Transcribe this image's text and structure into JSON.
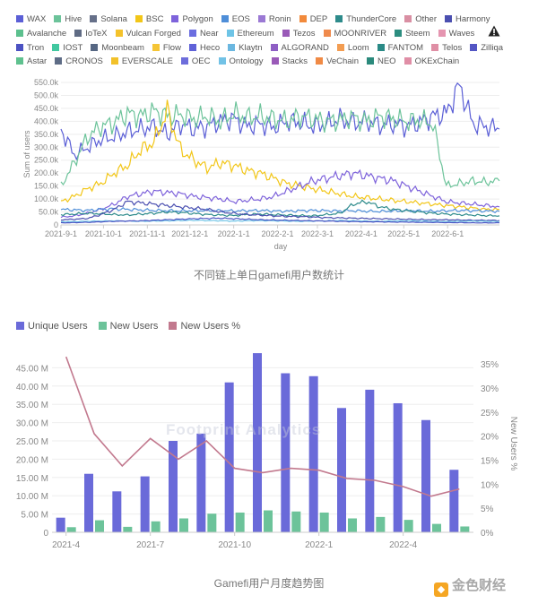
{
  "chart_data": [
    {
      "type": "line",
      "title": "不同链上单日gamefi用户数统计",
      "xlabel": "day",
      "ylabel": "Sum of users",
      "ylim": [
        0,
        550000
      ],
      "y_ticks": [
        "0",
        "50.0k",
        "100.0k",
        "150.0k",
        "200.0k",
        "250.0k",
        "300.0k",
        "350.0k",
        "400.0k",
        "450.0k",
        "500.0k",
        "550.0k"
      ],
      "x_ticks": [
        "2021-9-1",
        "2021-10-1",
        "2021-11-1",
        "2021-12-1",
        "2022-1-1",
        "2022-2-1",
        "2022-3-1",
        "2022-4-1",
        "2022-5-1",
        "2022-6-1"
      ],
      "legend": [
        {
          "name": "WAX",
          "color": "#5b5fd6"
        },
        {
          "name": "Hive",
          "color": "#6cc39a"
        },
        {
          "name": "Solana",
          "color": "#667089"
        },
        {
          "name": "BSC",
          "color": "#f2c618"
        },
        {
          "name": "Polygon",
          "color": "#7e63db"
        },
        {
          "name": "EOS",
          "color": "#4e8ed8"
        },
        {
          "name": "Ronin",
          "color": "#9b79d4"
        },
        {
          "name": "DEP",
          "color": "#f28a3b"
        },
        {
          "name": "ThunderCore",
          "color": "#2e8b8b"
        },
        {
          "name": "Other",
          "color": "#d98fa3"
        },
        {
          "name": "Harmony",
          "color": "#4b4fb0"
        },
        {
          "name": "Avalanche",
          "color": "#5cc08e"
        },
        {
          "name": "IoTeX",
          "color": "#5f6b84"
        },
        {
          "name": "Vulcan Forged",
          "color": "#f4c22b"
        },
        {
          "name": "Near",
          "color": "#6b6ee0"
        },
        {
          "name": "Ethereum",
          "color": "#6ec4e6"
        },
        {
          "name": "Tezos",
          "color": "#9a5ab8"
        },
        {
          "name": "MOONRIVER",
          "color": "#ef8a4c"
        },
        {
          "name": "Steem",
          "color": "#2c8d7f"
        },
        {
          "name": "Waves",
          "color": "#e595b0"
        },
        {
          "name": "Tron",
          "color": "#4c52c2"
        },
        {
          "name": "IOST",
          "color": "#41c8a0"
        },
        {
          "name": "Moonbeam",
          "color": "#566783"
        },
        {
          "name": "Flow",
          "color": "#f5c536"
        },
        {
          "name": "Heco",
          "color": "#5f62d8"
        },
        {
          "name": "Klaytn",
          "color": "#6bb7e0"
        },
        {
          "name": "ALGORAND",
          "color": "#8e5fc4"
        },
        {
          "name": "Loom",
          "color": "#f39d52"
        },
        {
          "name": "FANTOM",
          "color": "#2a8a86"
        },
        {
          "name": "Telos",
          "color": "#df8fa5"
        },
        {
          "name": "Zilliqa",
          "color": "#5356c4"
        },
        {
          "name": "Astar",
          "color": "#5fc18f"
        },
        {
          "name": "CRONOS",
          "color": "#5e6c86"
        },
        {
          "name": "EVERSCALE",
          "color": "#f2c12a"
        },
        {
          "name": "OEC",
          "color": "#6d6ddb"
        },
        {
          "name": "Ontology",
          "color": "#72c2e6"
        },
        {
          "name": "Stacks",
          "color": "#9a5ab8"
        },
        {
          "name": "VeChain",
          "color": "#f08a45"
        },
        {
          "name": "NEO",
          "color": "#2b8a7c"
        },
        {
          "name": "OKExChain",
          "color": "#e08ea6"
        }
      ],
      "series": [
        {
          "name": "WAX",
          "color": "#5b5fd6",
          "values": [
            370000,
            270000,
            300000,
            330000,
            340000,
            360000,
            370000,
            380000,
            350000,
            390000,
            370000,
            380000,
            400000,
            410000,
            380000,
            390000,
            375000,
            400000,
            395000,
            380000,
            390000,
            410000,
            395000,
            400000,
            385000,
            390000,
            380000,
            395000,
            420000,
            430000,
            540000,
            390000,
            380000,
            370000
          ]
        },
        {
          "name": "Hive",
          "color": "#6cc39a",
          "values": [
            150000,
            240000,
            340000,
            380000,
            395000,
            430000,
            420000,
            440000,
            420000,
            425000,
            410000,
            420000,
            400000,
            430000,
            415000,
            420000,
            410000,
            400000,
            420000,
            410000,
            400000,
            405000,
            415000,
            400000,
            420000,
            410000,
            400000,
            405000,
            390000,
            150000,
            160000,
            170000,
            165000,
            170000
          ]
        },
        {
          "name": "BSC",
          "color": "#f2c618",
          "values": [
            90000,
            110000,
            140000,
            160000,
            200000,
            230000,
            290000,
            320000,
            440000,
            290000,
            250000,
            220000,
            240000,
            230000,
            210000,
            200000,
            180000,
            160000,
            150000,
            140000,
            130000,
            120000,
            110000,
            105000,
            100000,
            95000,
            90000,
            85000,
            80000,
            75000,
            70000,
            65000,
            60000,
            60000
          ]
        },
        {
          "name": "Polygon",
          "color": "#7e63db",
          "values": [
            30000,
            35000,
            45000,
            60000,
            80000,
            110000,
            120000,
            130000,
            125000,
            120000,
            110000,
            105000,
            100000,
            90000,
            95000,
            100000,
            110000,
            130000,
            150000,
            170000,
            180000,
            190000,
            200000,
            190000,
            180000,
            170000,
            150000,
            130000,
            110000,
            90000,
            85000,
            80000,
            75000,
            70000
          ]
        },
        {
          "name": "EOS",
          "color": "#4e8ed8",
          "values": [
            60000,
            58000,
            56000,
            60000,
            62000,
            60000,
            58000,
            56000,
            55000,
            54000,
            55000,
            56000,
            55000,
            54000,
            55000,
            56000,
            54000,
            53000,
            55000,
            56000,
            55000,
            54000,
            55000,
            53000,
            52000,
            54000,
            55000,
            54000,
            53000,
            55000,
            56000,
            55000,
            54000,
            53000
          ]
        },
        {
          "name": "ThunderCore",
          "color": "#2e8b8b",
          "values": [
            40000,
            42000,
            45000,
            43000,
            40000,
            38000,
            42000,
            45000,
            50000,
            48000,
            44000,
            40000,
            38000,
            36000,
            40000,
            42000,
            40000,
            38000,
            36000,
            35000,
            40000,
            45000,
            80000,
            90000,
            70000,
            60000,
            55000,
            50000,
            45000,
            42000,
            40000,
            38000,
            36000,
            35000
          ]
        },
        {
          "name": "Harmony",
          "color": "#4b4fb0",
          "values": [
            20000,
            22000,
            25000,
            40000,
            60000,
            90000,
            85000,
            80000,
            75000,
            70000,
            65000,
            60000,
            50000,
            45000,
            40000,
            38000,
            35000,
            33000,
            32000,
            30000,
            28000,
            27000,
            26000,
            25000,
            24000,
            23000,
            22000,
            21000,
            20000,
            20000,
            19000,
            18000,
            18000,
            17000
          ]
        },
        {
          "name": "Ethereum",
          "color": "#6ec4e6",
          "values": [
            12000,
            13000,
            14000,
            15000,
            16000,
            15000,
            14000,
            15000,
            16000,
            17000,
            18000,
            17000,
            16000,
            15000,
            16000,
            17000,
            16000,
            15000,
            14000,
            15000,
            16000,
            17000,
            16000,
            15000,
            14000,
            15000,
            16000,
            15000,
            14000,
            13000,
            14000,
            15000,
            14000,
            13000
          ]
        },
        {
          "name": "Tron",
          "color": "#4c52c2",
          "values": [
            8000,
            9000,
            10000,
            12000,
            14000,
            15000,
            16000,
            18000,
            20000,
            22000,
            24000,
            25000,
            26000,
            24000,
            22000,
            20000,
            19000,
            18000,
            17000,
            16000,
            15000,
            14000,
            13000,
            12000,
            12000,
            11000,
            11000,
            10000,
            10000,
            9000,
            9000,
            8000,
            8000,
            8000
          ]
        }
      ]
    },
    {
      "type": "bar",
      "title": "Gamefi用户月度趋势图",
      "categories": [
        "2021-4",
        "2021-5",
        "2021-6",
        "2021-7",
        "2021-8",
        "2021-9",
        "2021-10",
        "2021-11",
        "2021-12",
        "2022-1",
        "2022-2",
        "2022-3",
        "2022-4",
        "2022-5",
        "2022-6"
      ],
      "x_ticks": [
        "2021-4",
        "2021-7",
        "2021-10",
        "2022-1",
        "2022-4"
      ],
      "ylim": [
        0,
        50000000
      ],
      "y_ticks": [
        "0",
        "5.00 M",
        "10.00 M",
        "15.00 M",
        "20.00 M",
        "25.00 M",
        "30.00 M",
        "35.00 M",
        "40.00 M",
        "45.00 M"
      ],
      "y2label": "New Users %",
      "y2lim": [
        0,
        38
      ],
      "y2_ticks": [
        "0%",
        "5%",
        "10%",
        "15%",
        "20%",
        "25%",
        "30%",
        "35%"
      ],
      "series": [
        {
          "name": "Unique Users",
          "color": "#6a6ad9",
          "type": "bar",
          "values": [
            4000000,
            16000000,
            11200000,
            15300000,
            25000000,
            27000000,
            41000000,
            49000000,
            43500000,
            42700000,
            34000000,
            39000000,
            35300000,
            30700000,
            17100000
          ]
        },
        {
          "name": "New Users",
          "color": "#6cc39a",
          "type": "bar",
          "values": [
            1400000,
            3300000,
            1500000,
            3000000,
            3800000,
            5100000,
            5400000,
            6000000,
            5700000,
            5400000,
            3800000,
            4200000,
            3400000,
            2300000,
            1600000
          ]
        },
        {
          "name": "New Users %",
          "color": "#c2798e",
          "type": "line",
          "values": [
            36.5,
            20.5,
            13.8,
            19.5,
            15.2,
            19.0,
            13.3,
            12.4,
            13.3,
            12.9,
            11.2,
            10.8,
            9.5,
            7.5,
            9.0
          ]
        }
      ]
    }
  ],
  "watermark": "Footprint Analytics",
  "brand": {
    "logo_glyph": "◆",
    "name": "金色财经"
  }
}
